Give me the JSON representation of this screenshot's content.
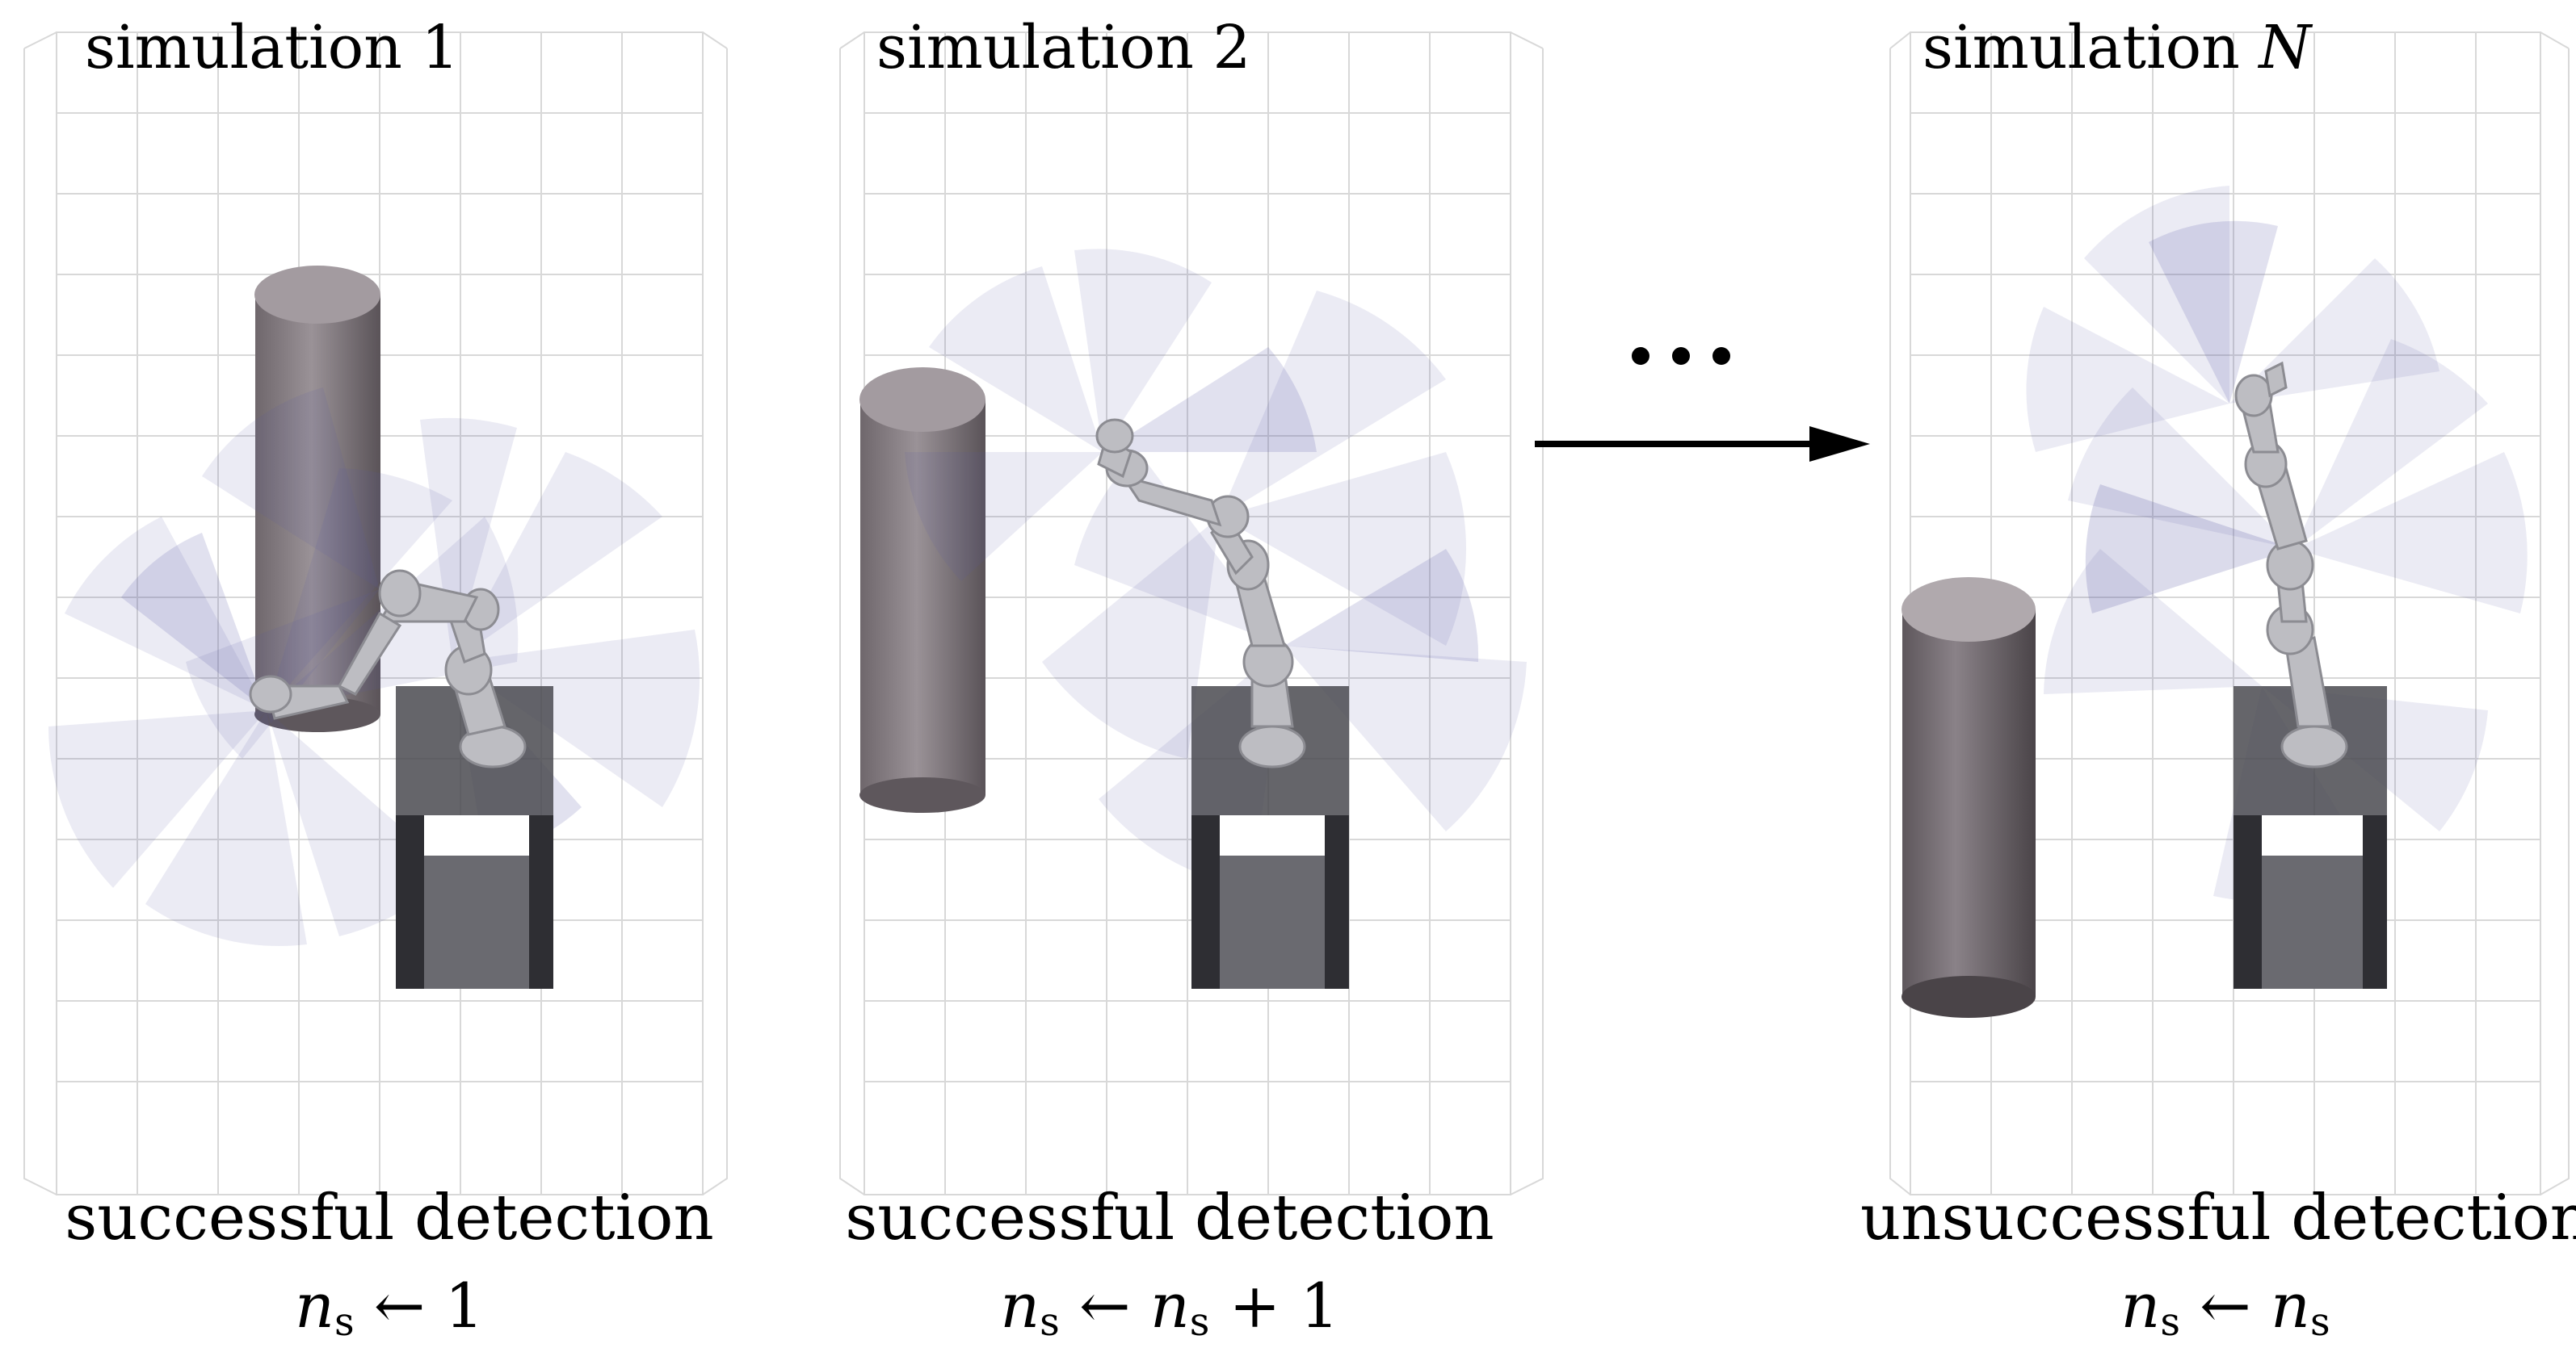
{
  "panels": [
    {
      "title_prefix": "simulation",
      "title_suffix": "1",
      "caption": "successful detection",
      "formula": {
        "lhs": "n",
        "sub": "s",
        "arrow": "←",
        "rhs_var": "",
        "rhs_op": "",
        "rhs_num": "1"
      }
    },
    {
      "title_prefix": "simulation",
      "title_suffix": "2",
      "caption": "successful detection",
      "formula": {
        "lhs": "n",
        "sub": "s",
        "arrow": "←",
        "rhs_var": "n",
        "rhs_sub": "s",
        "rhs_op": "+",
        "rhs_num": "1"
      }
    },
    {
      "title_prefix": "simulation",
      "title_suffix": "N",
      "caption": "unsuccessful detection",
      "formula": {
        "lhs": "n",
        "sub": "s",
        "arrow": "←",
        "rhs_var": "n",
        "rhs_sub": "s",
        "rhs_op": "",
        "rhs_num": ""
      }
    }
  ],
  "colors": {
    "cone": "#5a5aa6",
    "obstacle": "#8a8088",
    "table": "#3a3a3e",
    "robot": "#b8b8bc",
    "grid": "#d6d6d6"
  }
}
